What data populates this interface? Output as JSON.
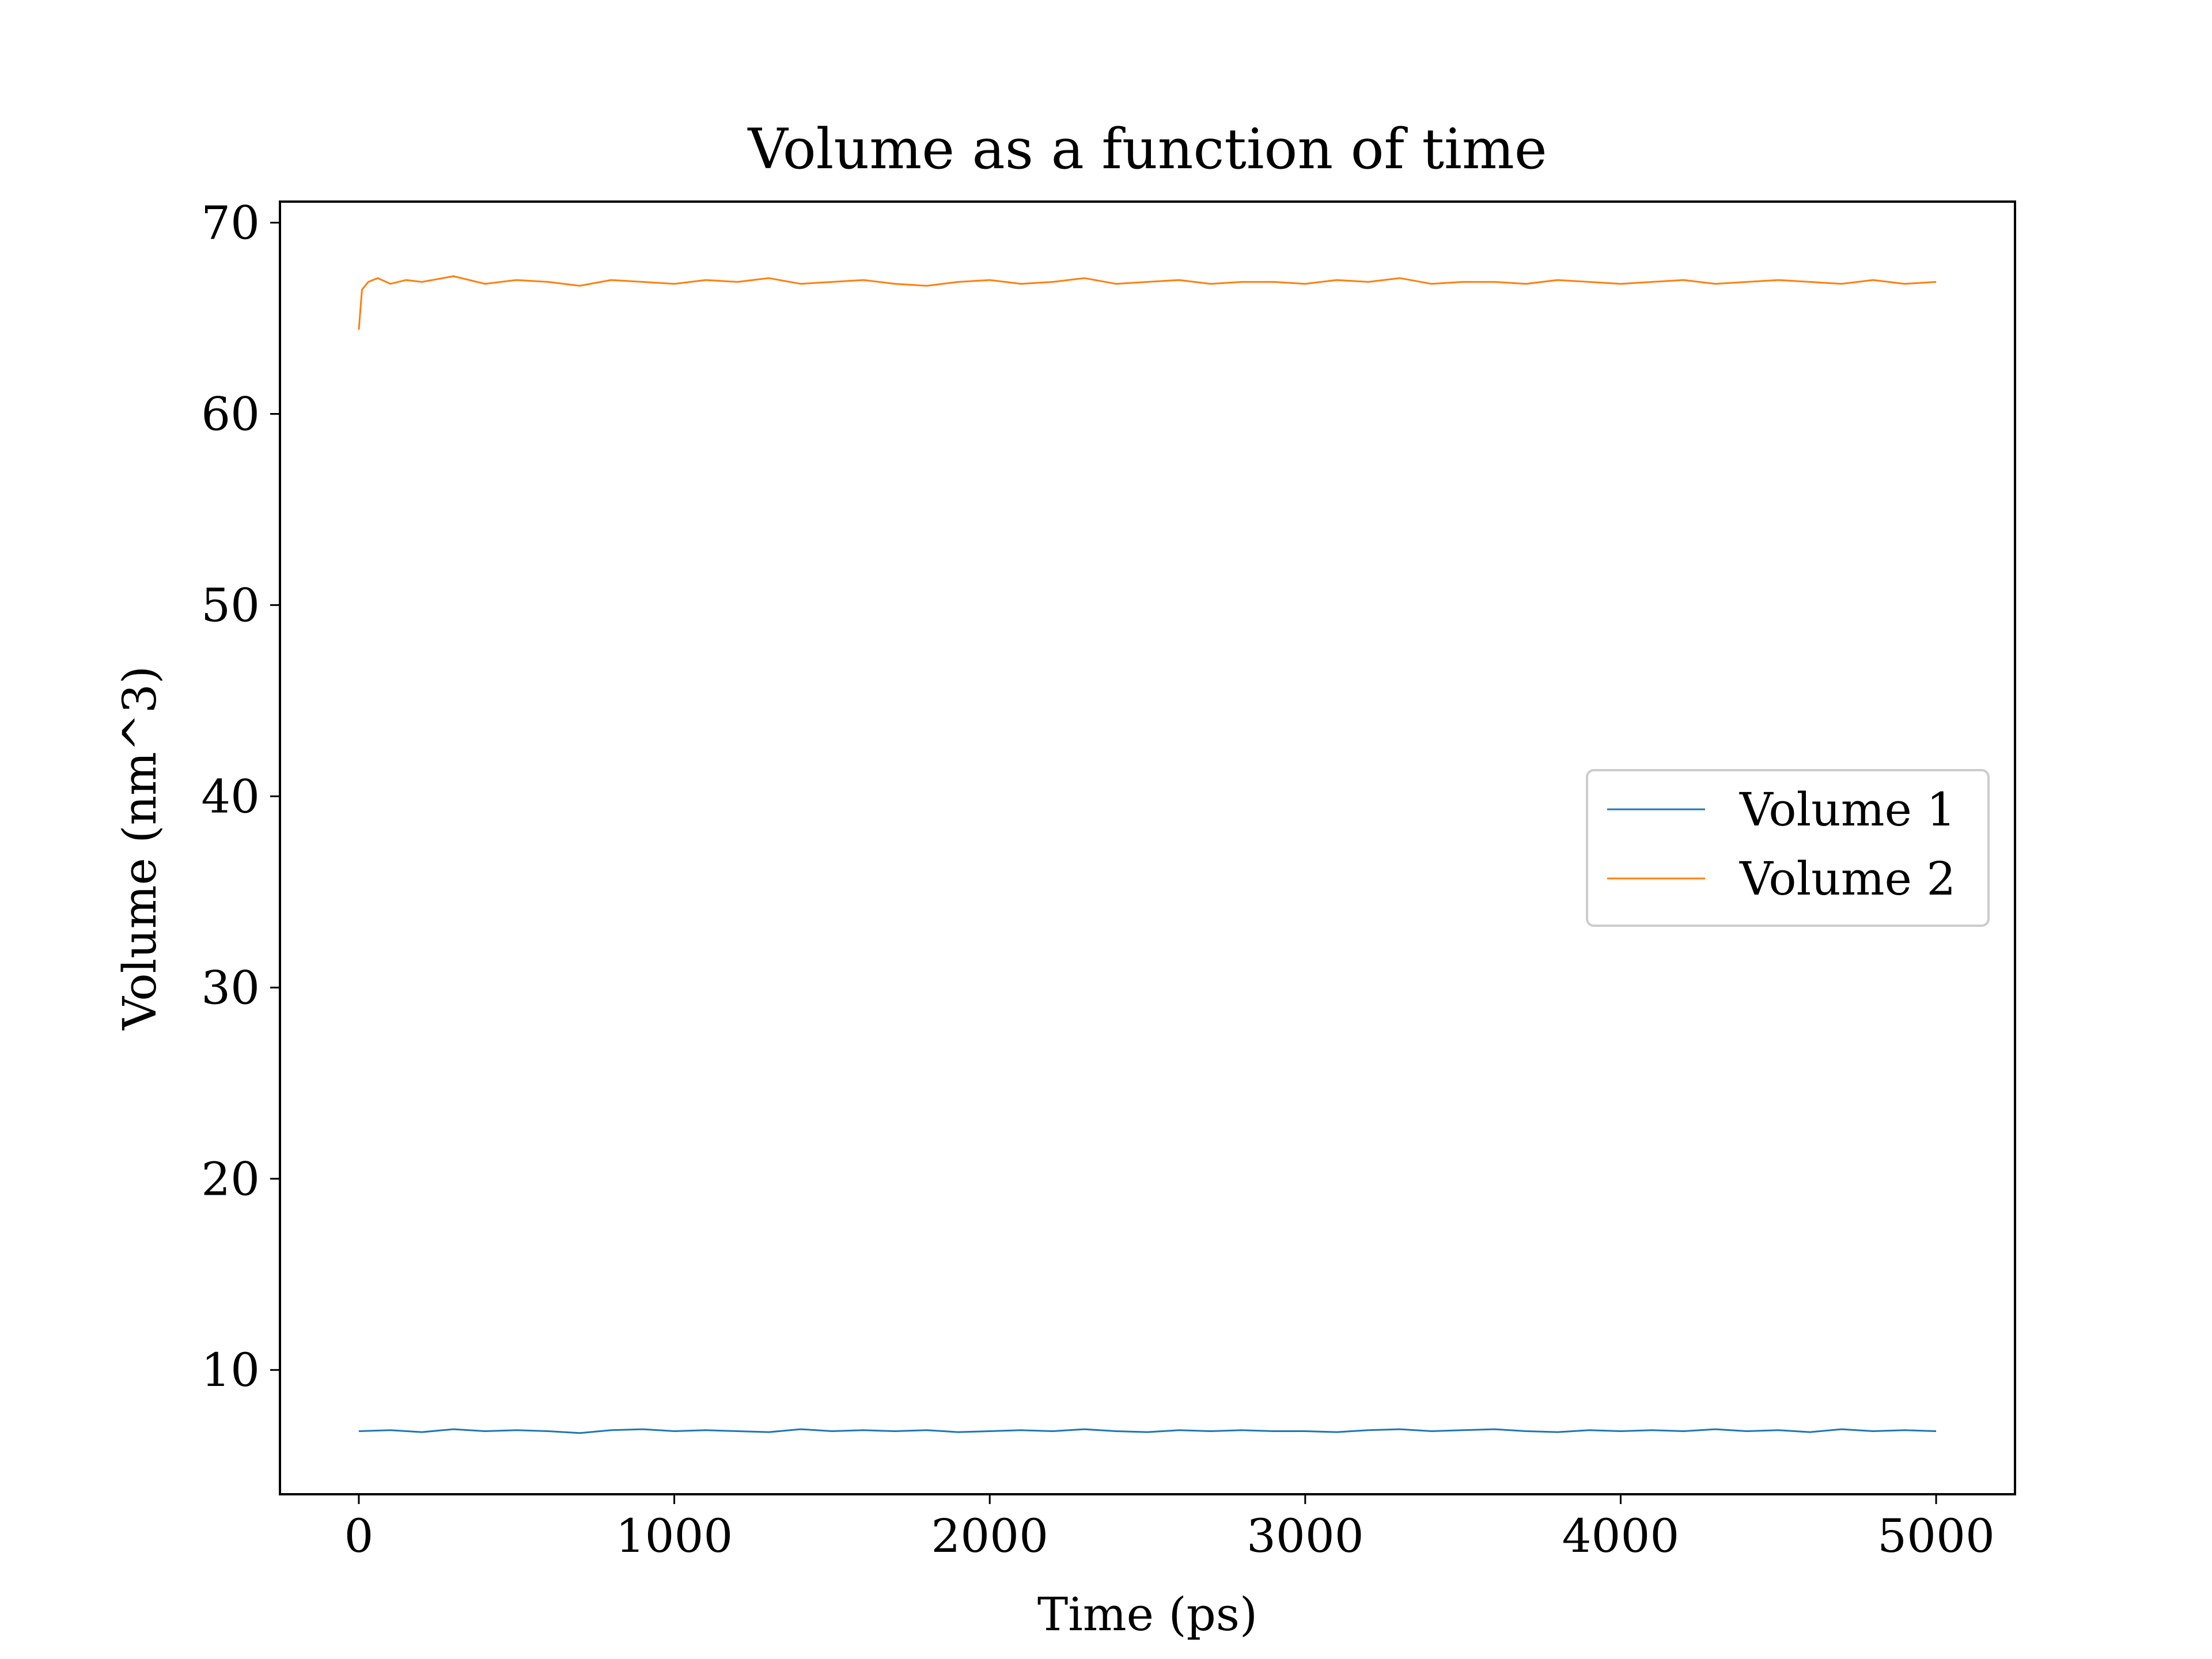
{
  "chart_data": {
    "type": "line",
    "title": "Volume as a function of time",
    "xlabel": "Time (ps)",
    "ylabel": "Volume (nm^3)",
    "xlim": [
      -250,
      5250
    ],
    "ylim": [
      3.5,
      71.1
    ],
    "xticks": [
      0,
      1000,
      2000,
      3000,
      4000,
      5000
    ],
    "yticks": [
      10,
      20,
      30,
      40,
      50,
      60,
      70
    ],
    "grid": false,
    "legend_position": "center-right",
    "series": [
      {
        "name": "Volume 1",
        "color": "#1f77b4",
        "x": [
          0,
          100,
          200,
          300,
          400,
          500,
          600,
          700,
          800,
          900,
          1000,
          1100,
          1200,
          1300,
          1400,
          1500,
          1600,
          1700,
          1800,
          1900,
          2000,
          2100,
          2200,
          2300,
          2400,
          2500,
          2600,
          2700,
          2800,
          2900,
          3000,
          3100,
          3200,
          3300,
          3400,
          3500,
          3600,
          3700,
          3800,
          3900,
          4000,
          4100,
          4200,
          4300,
          4400,
          4500,
          4600,
          4700,
          4800,
          4900,
          5000
        ],
        "y": [
          6.8,
          6.85,
          6.75,
          6.9,
          6.8,
          6.85,
          6.8,
          6.7,
          6.85,
          6.9,
          6.8,
          6.85,
          6.8,
          6.75,
          6.9,
          6.8,
          6.85,
          6.8,
          6.85,
          6.75,
          6.8,
          6.85,
          6.8,
          6.9,
          6.8,
          6.75,
          6.85,
          6.8,
          6.85,
          6.8,
          6.8,
          6.75,
          6.85,
          6.9,
          6.8,
          6.85,
          6.9,
          6.8,
          6.75,
          6.85,
          6.8,
          6.85,
          6.8,
          6.9,
          6.8,
          6.85,
          6.75,
          6.9,
          6.8,
          6.85,
          6.8
        ]
      },
      {
        "name": "Volume 2",
        "color": "#ff7f0e",
        "x": [
          0,
          10,
          30,
          60,
          100,
          150,
          200,
          300,
          400,
          500,
          600,
          700,
          800,
          900,
          1000,
          1100,
          1200,
          1300,
          1400,
          1500,
          1600,
          1700,
          1800,
          1900,
          2000,
          2100,
          2200,
          2300,
          2400,
          2500,
          2600,
          2700,
          2800,
          2900,
          3000,
          3100,
          3200,
          3300,
          3400,
          3500,
          3600,
          3700,
          3800,
          3900,
          4000,
          4100,
          4200,
          4300,
          4400,
          4500,
          4600,
          4700,
          4800,
          4900,
          5000
        ],
        "y": [
          64.4,
          66.5,
          66.9,
          67.1,
          66.8,
          67.0,
          66.9,
          67.2,
          66.8,
          67.0,
          66.9,
          66.7,
          67.0,
          66.9,
          66.8,
          67.0,
          66.9,
          67.1,
          66.8,
          66.9,
          67.0,
          66.8,
          66.7,
          66.9,
          67.0,
          66.8,
          66.9,
          67.1,
          66.8,
          66.9,
          67.0,
          66.8,
          66.9,
          66.9,
          66.8,
          67.0,
          66.9,
          67.1,
          66.8,
          66.9,
          66.9,
          66.8,
          67.0,
          66.9,
          66.8,
          66.9,
          67.0,
          66.8,
          66.9,
          67.0,
          66.9,
          66.8,
          67.0,
          66.8,
          66.9
        ]
      }
    ]
  }
}
